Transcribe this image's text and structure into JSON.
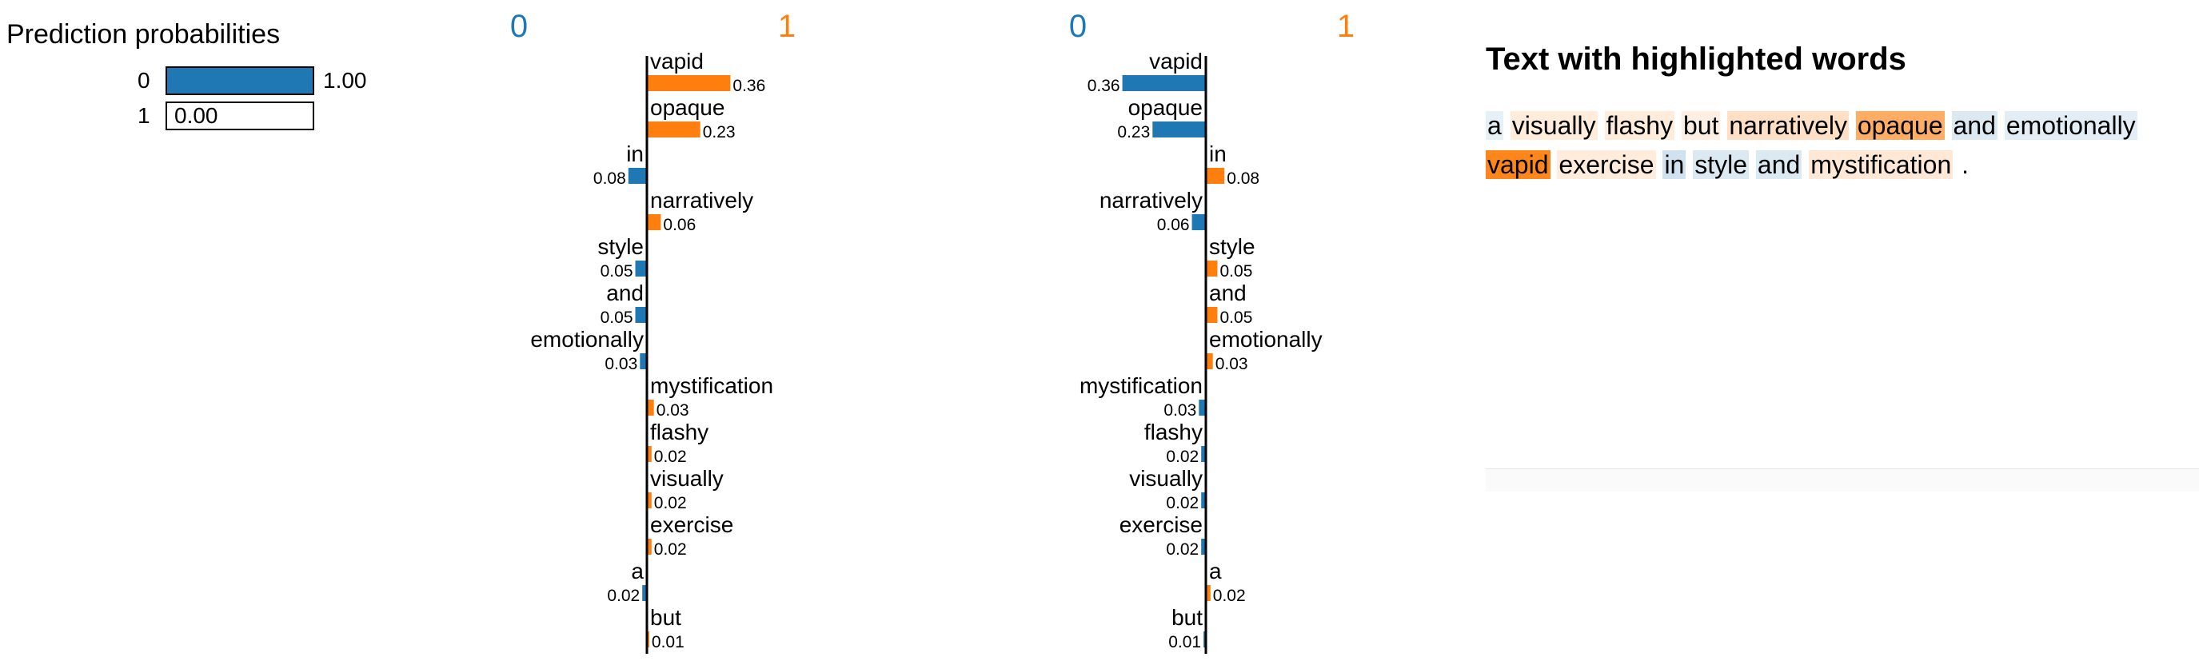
{
  "colors": {
    "class0": "#1f77b4",
    "class1": "#ff7f0e"
  },
  "prediction": {
    "title": "Prediction probabilities",
    "rows": [
      {
        "label": "0",
        "value": 1.0,
        "value_label": "1.00"
      },
      {
        "label": "1",
        "value": 0.0,
        "value_label": "0.00"
      }
    ]
  },
  "chart_data": [
    {
      "type": "bar",
      "orientation": "horizontal",
      "left_label": "0",
      "right_label": "1",
      "categories": [
        "vapid",
        "opaque",
        "in",
        "narratively",
        "style",
        "and",
        "emotionally",
        "mystification",
        "flashy",
        "visually",
        "exercise",
        "a",
        "but"
      ],
      "values": [
        0.36,
        0.23,
        -0.08,
        0.06,
        -0.05,
        -0.05,
        -0.03,
        0.03,
        0.02,
        0.02,
        0.02,
        -0.02,
        0.01
      ],
      "value_labels": [
        "0.36",
        "0.23",
        "0.08",
        "0.06",
        "0.05",
        "0.05",
        "0.03",
        "0.03",
        "0.02",
        "0.02",
        "0.02",
        "0.02",
        "0.01"
      ]
    },
    {
      "type": "bar",
      "orientation": "horizontal",
      "left_label": "0",
      "right_label": "1",
      "categories": [
        "vapid",
        "opaque",
        "in",
        "narratively",
        "style",
        "and",
        "emotionally",
        "mystification",
        "flashy",
        "visually",
        "exercise",
        "a",
        "but"
      ],
      "values": [
        -0.36,
        -0.23,
        0.08,
        -0.06,
        0.05,
        0.05,
        0.03,
        -0.03,
        -0.02,
        -0.02,
        -0.02,
        0.02,
        -0.01
      ],
      "value_labels": [
        "0.36",
        "0.23",
        "0.08",
        "0.06",
        "0.05",
        "0.05",
        "0.03",
        "0.03",
        "0.02",
        "0.02",
        "0.02",
        "0.02",
        "0.01"
      ]
    }
  ],
  "highlight": {
    "title": "Text with highlighted words",
    "words": [
      {
        "text": "a",
        "weight": -0.02
      },
      {
        "text": "visually",
        "weight": 0.02
      },
      {
        "text": "flashy",
        "weight": 0.02
      },
      {
        "text": "but",
        "weight": 0.01
      },
      {
        "text": "narratively",
        "weight": 0.06
      },
      {
        "text": "opaque",
        "weight": 0.23
      },
      {
        "text": "and",
        "weight": -0.05
      },
      {
        "text": "emotionally",
        "weight": -0.03
      },
      {
        "text": "vapid",
        "weight": 0.36
      },
      {
        "text": "exercise",
        "weight": 0.02
      },
      {
        "text": "in",
        "weight": -0.08
      },
      {
        "text": "style",
        "weight": -0.05
      },
      {
        "text": "and",
        "weight": -0.05
      },
      {
        "text": "mystification",
        "weight": 0.03
      },
      {
        "text": ".",
        "weight": 0
      }
    ]
  }
}
